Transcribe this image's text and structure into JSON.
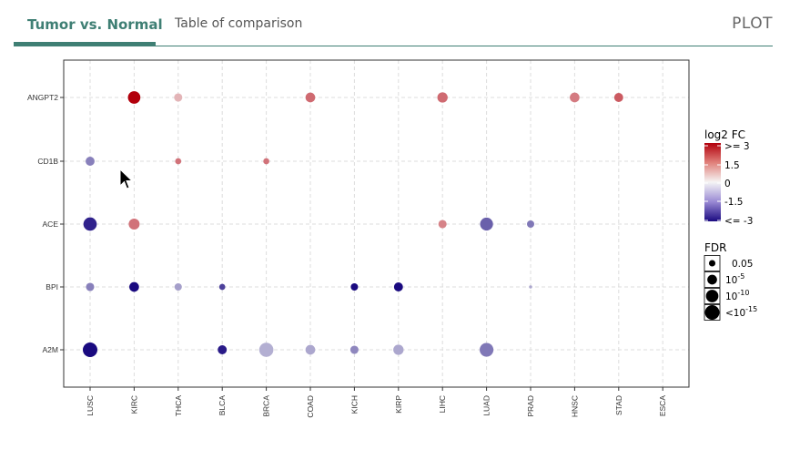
{
  "tabs": {
    "active_label": "Tumor vs. Normal",
    "inactive_label": "Table of comparison",
    "plot_label": "PLOT"
  },
  "colors": {
    "accent": "#3f7f74",
    "high": "#b2000c",
    "mid": "#f5f5f5",
    "low": "#1a0a80"
  },
  "chart_data": {
    "type": "bubble",
    "x_categories": [
      "LUSC",
      "KIRC",
      "THCA",
      "BLCA",
      "BRCA",
      "COAD",
      "KICH",
      "KIRP",
      "LIHC",
      "LUAD",
      "PRAD",
      "HNSC",
      "STAD",
      "ESCA"
    ],
    "y_categories": [
      "ANGPT2",
      "CD1B",
      "ACE",
      "BPI",
      "A2M"
    ],
    "grid": true,
    "color_scale": {
      "min": -3,
      "max": 3
    },
    "points": [
      {
        "gene": "ANGPT2",
        "cancer": "KIRC",
        "log2fc": 3.0,
        "fdr_exp": 10
      },
      {
        "gene": "ANGPT2",
        "cancer": "THCA",
        "log2fc": 0.8,
        "fdr_exp": 3
      },
      {
        "gene": "ANGPT2",
        "cancer": "COAD",
        "log2fc": 1.7,
        "fdr_exp": 5
      },
      {
        "gene": "ANGPT2",
        "cancer": "LIHC",
        "log2fc": 1.7,
        "fdr_exp": 6
      },
      {
        "gene": "ANGPT2",
        "cancer": "HNSC",
        "log2fc": 1.5,
        "fdr_exp": 5
      },
      {
        "gene": "ANGPT2",
        "cancer": "STAD",
        "log2fc": 1.9,
        "fdr_exp": 4
      },
      {
        "gene": "CD1B",
        "cancer": "LUSC",
        "log2fc": -1.5,
        "fdr_exp": 4
      },
      {
        "gene": "CD1B",
        "cancer": "THCA",
        "log2fc": 1.6,
        "fdr_exp": 1
      },
      {
        "gene": "CD1B",
        "cancer": "BRCA",
        "log2fc": 1.6,
        "fdr_exp": 1
      },
      {
        "gene": "ACE",
        "cancer": "LUSC",
        "log2fc": -2.7,
        "fdr_exp": 12
      },
      {
        "gene": "ACE",
        "cancer": "KIRC",
        "log2fc": 1.6,
        "fdr_exp": 7
      },
      {
        "gene": "ACE",
        "cancer": "LIHC",
        "log2fc": 1.4,
        "fdr_exp": 3
      },
      {
        "gene": "ACE",
        "cancer": "LUAD",
        "log2fc": -1.9,
        "fdr_exp": 11
      },
      {
        "gene": "ACE",
        "cancer": "PRAD",
        "log2fc": -1.6,
        "fdr_exp": 2
      },
      {
        "gene": "BPI",
        "cancer": "LUSC",
        "log2fc": -1.5,
        "fdr_exp": 3
      },
      {
        "gene": "BPI",
        "cancer": "KIRC",
        "log2fc": -3.0,
        "fdr_exp": 5
      },
      {
        "gene": "BPI",
        "cancer": "THCA",
        "log2fc": -1.1,
        "fdr_exp": 2
      },
      {
        "gene": "BPI",
        "cancer": "BLCA",
        "log2fc": -2.3,
        "fdr_exp": 1
      },
      {
        "gene": "BPI",
        "cancer": "KICH",
        "log2fc": -3.0,
        "fdr_exp": 2
      },
      {
        "gene": "BPI",
        "cancer": "KIRP",
        "log2fc": -3.0,
        "fdr_exp": 4
      },
      {
        "gene": "BPI",
        "cancer": "PRAD",
        "log2fc": -1.0,
        "fdr_exp": 0
      },
      {
        "gene": "A2M",
        "cancer": "LUSC",
        "log2fc": -3.0,
        "fdr_exp": 15
      },
      {
        "gene": "A2M",
        "cancer": "BLCA",
        "log2fc": -2.8,
        "fdr_exp": 4
      },
      {
        "gene": "A2M",
        "cancer": "BRCA",
        "log2fc": -0.9,
        "fdr_exp": 14
      },
      {
        "gene": "A2M",
        "cancer": "COAD",
        "log2fc": -1.0,
        "fdr_exp": 5
      },
      {
        "gene": "A2M",
        "cancer": "KICH",
        "log2fc": -1.4,
        "fdr_exp": 3
      },
      {
        "gene": "A2M",
        "cancer": "KIRP",
        "log2fc": -1.0,
        "fdr_exp": 6
      },
      {
        "gene": "A2M",
        "cancer": "LUAD",
        "log2fc": -1.6,
        "fdr_exp": 13
      }
    ],
    "legend_color": {
      "title": "log2 FC",
      "labels": [
        ">= 3",
        "1.5",
        "0",
        "-1.5",
        "<= -3"
      ]
    },
    "legend_size": {
      "title": "FDR",
      "entries": [
        {
          "label": "0.05",
          "fdr_exp": 1.3
        },
        {
          "base": "10",
          "exp": "-5",
          "fdr_exp": 5
        },
        {
          "base": "10",
          "exp": "-10",
          "fdr_exp": 10
        },
        {
          "base": "<10",
          "exp": "-15",
          "fdr_exp": 15
        }
      ],
      "position": "right"
    }
  }
}
